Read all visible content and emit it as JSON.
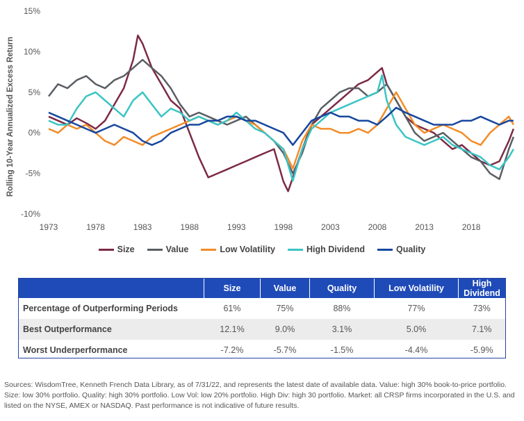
{
  "chart_data": {
    "type": "line",
    "ylabel": "Rolling 10-Year Annualized Excess Return",
    "xlabel": "",
    "y_ticks": [
      "15%",
      "10%",
      "5%",
      "0%",
      "-5%",
      "-10%"
    ],
    "x_ticks": [
      "1973",
      "1978",
      "1983",
      "1988",
      "1993",
      "1998",
      "2003",
      "2008",
      "2013",
      "2018"
    ],
    "ylim": [
      -10,
      15
    ],
    "xlim": [
      1973,
      2022.58
    ],
    "legend_position": "bottom",
    "series": [
      {
        "name": "Size",
        "color": "#7b2a45",
        "x": [
          1973,
          1974,
          1975,
          1976,
          1977,
          1978,
          1979,
          1980,
          1981,
          1982,
          1982.5,
          1983,
          1984,
          1985,
          1986,
          1987,
          1988,
          1989,
          1990,
          1991,
          1992,
          1993,
          1994,
          1995,
          1996,
          1997,
          1998,
          1998.5,
          1999,
          2000,
          2001,
          2002,
          2003,
          2004,
          2005,
          2006,
          2007,
          2008,
          2008.5,
          2009,
          2010,
          2011,
          2012,
          2013,
          2014,
          2015,
          2016,
          2017,
          2018,
          2019,
          2020,
          2021,
          2022,
          2022.5
        ],
        "values": [
          2.0,
          1.5,
          1.0,
          1.8,
          1.2,
          0.5,
          1.5,
          3.5,
          5.5,
          9.0,
          12.0,
          11.0,
          8.0,
          6.0,
          4.0,
          3.0,
          0.0,
          -3.0,
          -5.5,
          -5.0,
          -4.5,
          -4.0,
          -3.5,
          -3.0,
          -2.5,
          -2.0,
          -6.0,
          -7.2,
          -5.5,
          -2.0,
          1.0,
          2.0,
          3.0,
          4.0,
          5.0,
          6.0,
          6.5,
          7.5,
          8.0,
          6.0,
          4.0,
          2.0,
          1.0,
          0.5,
          0.0,
          -1.0,
          -2.0,
          -1.5,
          -2.5,
          -3.5,
          -4.0,
          -3.5,
          -1.0,
          0.5
        ]
      },
      {
        "name": "Value",
        "color": "#5a5e63",
        "x": [
          1973,
          1974,
          1975,
          1976,
          1977,
          1978,
          1979,
          1980,
          1981,
          1982,
          1983,
          1984,
          1985,
          1986,
          1987,
          1988,
          1989,
          1990,
          1991,
          1992,
          1993,
          1994,
          1995,
          1996,
          1997,
          1998,
          1999,
          2000,
          2001,
          2002,
          2003,
          2004,
          2005,
          2006,
          2007,
          2008,
          2009,
          2010,
          2011,
          2012,
          2013,
          2014,
          2015,
          2016,
          2017,
          2018,
          2019,
          2020,
          2021,
          2022,
          2022.5
        ],
        "values": [
          4.5,
          6.0,
          5.5,
          6.5,
          7.0,
          6.0,
          5.5,
          6.5,
          7.0,
          8.0,
          9.0,
          8.0,
          7.0,
          5.5,
          3.5,
          2.0,
          2.5,
          2.0,
          1.5,
          1.0,
          1.5,
          2.0,
          1.0,
          0.0,
          -1.0,
          -2.5,
          -5.0,
          -2.5,
          1.0,
          3.0,
          4.0,
          5.0,
          5.5,
          5.5,
          4.5,
          5.0,
          6.0,
          4.0,
          2.0,
          0.0,
          -1.0,
          -0.5,
          0.0,
          -1.0,
          -2.0,
          -3.0,
          -3.5,
          -5.0,
          -5.7,
          -2.0,
          -0.5
        ]
      },
      {
        "name": "Low Volatility",
        "color": "#f28c28",
        "x": [
          1973,
          1974,
          1975,
          1976,
          1977,
          1978,
          1979,
          1980,
          1981,
          1982,
          1983,
          1984,
          1985,
          1986,
          1987,
          1988,
          1989,
          1990,
          1991,
          1992,
          1993,
          1994,
          1995,
          1996,
          1997,
          1998,
          1999,
          2000,
          2001,
          2002,
          2003,
          2004,
          2005,
          2006,
          2007,
          2008,
          2009,
          2010,
          2011,
          2012,
          2013,
          2014,
          2015,
          2016,
          2017,
          2018,
          2019,
          2020,
          2021,
          2022,
          2022.5
        ],
        "values": [
          0.5,
          0.0,
          1.0,
          0.5,
          1.0,
          0.0,
          -1.0,
          -1.5,
          -0.5,
          -1.0,
          -1.5,
          -0.5,
          0.0,
          0.5,
          1.0,
          1.5,
          2.0,
          1.5,
          1.0,
          1.5,
          2.0,
          1.5,
          1.0,
          0.0,
          -1.0,
          -2.0,
          -4.4,
          -1.0,
          1.0,
          0.5,
          0.5,
          0.0,
          0.0,
          0.5,
          0.0,
          1.0,
          3.0,
          5.0,
          3.0,
          1.0,
          0.0,
          0.5,
          1.0,
          0.5,
          0.0,
          -1.0,
          -1.5,
          0.0,
          1.0,
          2.0,
          1.0
        ]
      },
      {
        "name": "High Dividend",
        "color": "#3bc4c4",
        "x": [
          1973,
          1974,
          1975,
          1976,
          1977,
          1978,
          1979,
          1980,
          1981,
          1982,
          1983,
          1984,
          1985,
          1986,
          1987,
          1988,
          1989,
          1990,
          1991,
          1992,
          1993,
          1994,
          1995,
          1996,
          1997,
          1998,
          1999,
          2000,
          2001,
          2002,
          2003,
          2004,
          2005,
          2006,
          2007,
          2008,
          2008.5,
          2009,
          2010,
          2011,
          2012,
          2013,
          2014,
          2015,
          2016,
          2017,
          2018,
          2019,
          2020,
          2021,
          2022,
          2022.5
        ],
        "values": [
          1.5,
          1.0,
          1.0,
          3.0,
          4.5,
          5.0,
          4.0,
          3.0,
          2.0,
          4.0,
          5.0,
          3.5,
          2.0,
          3.0,
          2.5,
          1.5,
          2.0,
          1.5,
          1.0,
          1.5,
          2.5,
          1.5,
          0.5,
          0.0,
          -1.0,
          -2.0,
          -5.9,
          -2.0,
          0.5,
          1.5,
          2.5,
          3.0,
          3.5,
          4.0,
          4.5,
          5.0,
          7.1,
          4.0,
          1.0,
          -0.5,
          -1.0,
          -1.5,
          -1.0,
          -0.5,
          -1.5,
          -2.0,
          -2.5,
          -3.0,
          -4.0,
          -4.5,
          -3.0,
          -2.0
        ]
      },
      {
        "name": "Quality",
        "color": "#17479e",
        "x": [
          1973,
          1974,
          1975,
          1976,
          1977,
          1978,
          1979,
          1980,
          1981,
          1982,
          1983,
          1984,
          1985,
          1986,
          1987,
          1988,
          1989,
          1990,
          1991,
          1992,
          1993,
          1994,
          1995,
          1996,
          1997,
          1998,
          1999,
          2000,
          2001,
          2002,
          2003,
          2004,
          2005,
          2006,
          2007,
          2008,
          2009,
          2010,
          2011,
          2012,
          2013,
          2014,
          2015,
          2016,
          2017,
          2018,
          2019,
          2020,
          2021,
          2022,
          2022.5
        ],
        "values": [
          2.5,
          2.0,
          1.5,
          1.0,
          0.5,
          0.0,
          0.5,
          1.0,
          0.5,
          0.0,
          -1.0,
          -1.5,
          -1.0,
          0.0,
          0.5,
          1.0,
          1.0,
          1.5,
          1.5,
          2.0,
          2.0,
          1.5,
          1.5,
          1.0,
          0.5,
          0.0,
          -1.5,
          0.0,
          1.5,
          2.0,
          2.5,
          2.0,
          2.0,
          1.5,
          1.5,
          1.0,
          2.0,
          3.1,
          2.5,
          2.0,
          1.5,
          1.0,
          1.0,
          1.0,
          1.5,
          1.5,
          2.0,
          1.5,
          1.0,
          1.5,
          1.5
        ]
      }
    ]
  },
  "table": {
    "headers": [
      "",
      "Size",
      "Value",
      "Quality",
      "Low Volatility",
      "High Dividend"
    ],
    "rows": [
      {
        "label": "Percentage of Outperforming Periods",
        "values": [
          "61%",
          "75%",
          "88%",
          "77%",
          "73%"
        ]
      },
      {
        "label": "Best Outperformance",
        "values": [
          "12.1%",
          "9.0%",
          "3.1%",
          "5.0%",
          "7.1%"
        ]
      },
      {
        "label": "Worst Underperformance",
        "values": [
          "-7.2%",
          "-5.7%",
          "-1.5%",
          "-4.4%",
          "-5.9%"
        ]
      }
    ]
  },
  "footnote": "Sources: WisdomTree, Kenneth French Data Library, as of 7/31/22, and represents the latest date of available data. Value: high 30% book-to-price portfolio. Size: low 30% portfolio. Quality: high 30% portfolio. Low Vol: low 20% portfolio. High Div: high 30 portfolio. Market: all CRSP firms incorporated in the U.S. and listed on the NYSE, AMEX or NASDAQ. Past performance is not indicative of future results."
}
